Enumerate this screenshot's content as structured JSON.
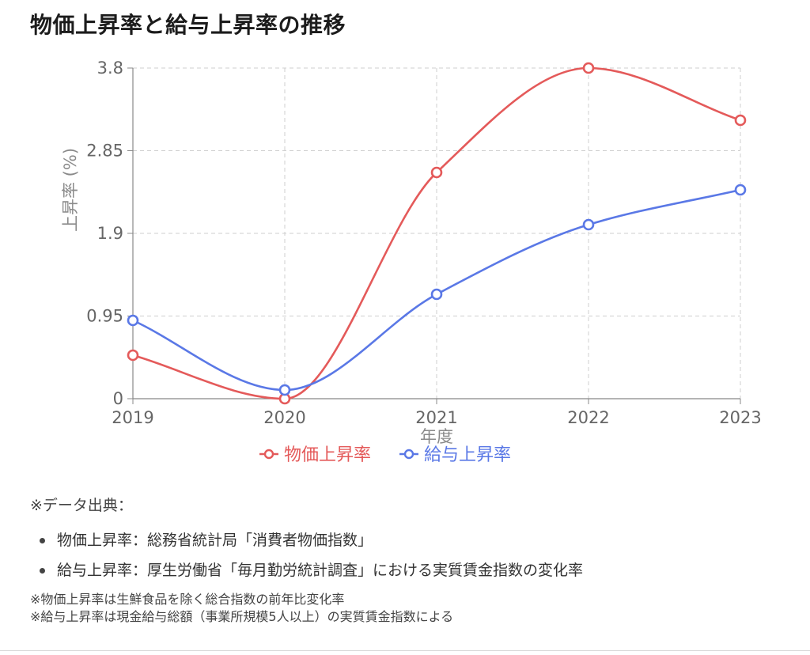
{
  "title": "物価上昇率と給与上昇率の推移",
  "chart_data": {
    "type": "line",
    "x": [
      "2019",
      "2020",
      "2021",
      "2022",
      "2023"
    ],
    "series": [
      {
        "name": "物価上昇率",
        "values": [
          0.5,
          0.0,
          2.6,
          3.8,
          3.2
        ],
        "color": "#e45a5a"
      },
      {
        "name": "給与上昇率",
        "values": [
          0.9,
          0.1,
          1.2,
          2.0,
          2.4
        ],
        "color": "#5a78e6"
      }
    ],
    "ylim": [
      0,
      3.8
    ],
    "yticks": [
      "0",
      "0.95",
      "1.9",
      "2.85",
      "3.8"
    ],
    "xlabel": "年度",
    "ylabel": "上昇率 (%)",
    "grid": true,
    "legend_position": "bottom"
  },
  "notes": {
    "heading": "※データ出典：",
    "sources": [
      "物価上昇率：総務省統計局「消費者物価指数」",
      "給与上昇率：厚生労働省「毎月勤労統計調査」における実質賃金指数の変化率"
    ],
    "footnotes": [
      "※物価上昇率は生鮮食品を除く総合指数の前年比変化率",
      "※給与上昇率は現金給与総額（事業所規模5人以上）の実質賃金指数による"
    ]
  }
}
